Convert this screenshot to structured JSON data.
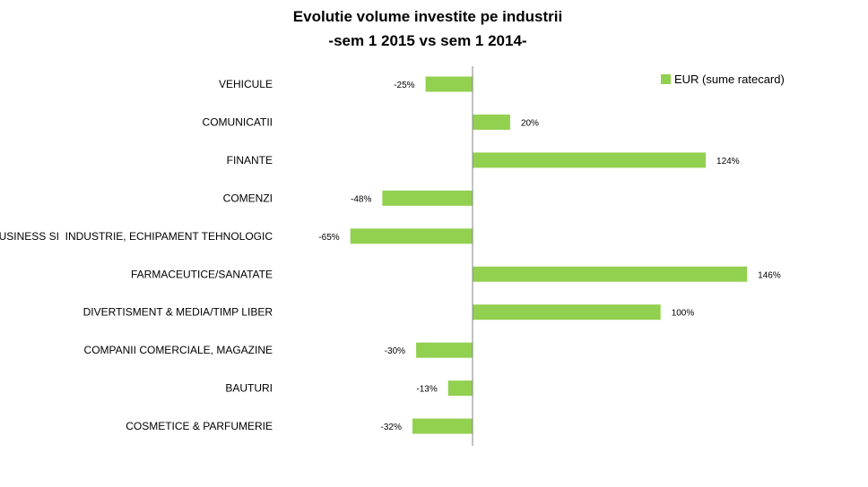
{
  "chart_data": {
    "type": "bar",
    "orientation": "horizontal",
    "title": "Evolutie volume investite pe industrii",
    "subtitle": "-sem 1 2015 vs sem 1 2014-",
    "categories": [
      "VEHICULE",
      "COMUNICATII",
      "FINANTE",
      "COMENZI",
      "BUSINESS SI  INDUSTRIE, ECHIPAMENT TEHNOLOGIC",
      "FARMACEUTICE/SANATATE",
      "DIVERTISMENT & MEDIA/TIMP LIBER",
      "COMPANII COMERCIALE, MAGAZINE",
      "BAUTURI",
      "COSMETICE & PARFUMERIE"
    ],
    "series": [
      {
        "name": "EUR (sume ratecard)",
        "color": "#92d050",
        "values": [
          -25,
          20,
          124,
          -48,
          -65,
          146,
          100,
          -30,
          -13,
          -32
        ]
      }
    ],
    "data_labels": [
      "-25%",
      "20%",
      "124%",
      "-48%",
      "-65%",
      "146%",
      "100%",
      "-30%",
      "-13%",
      "-32%"
    ],
    "legend_position": "top-right",
    "grid": false,
    "xlim": [
      -100,
      160
    ]
  }
}
